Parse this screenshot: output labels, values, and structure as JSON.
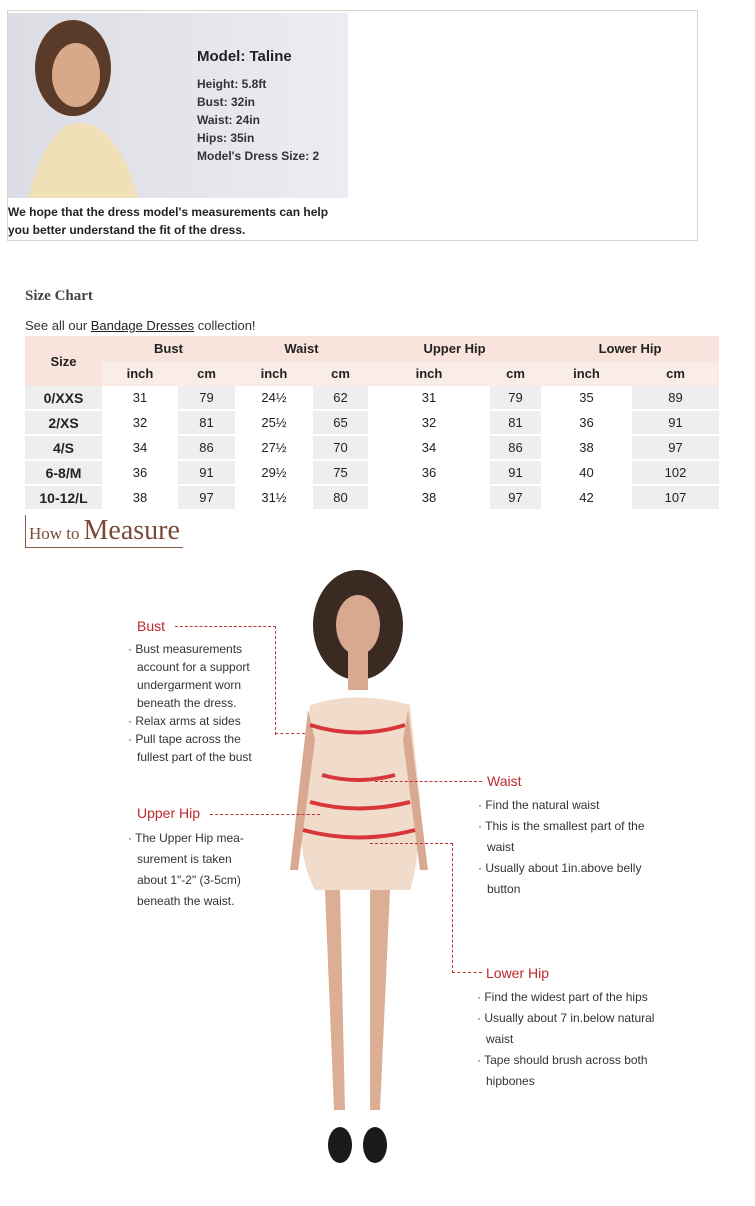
{
  "model": {
    "title": "Model: Taline",
    "lines": [
      "Height: 5.8ft",
      "Bust: 32in",
      "Waist: 24in",
      "Hips: 35in",
      "Model's Dress Size: 2"
    ],
    "note": "We hope that the dress model's measurements can help you better understand the fit of the dress."
  },
  "size_chart": {
    "title": "Size Chart",
    "see_all_prefix": "See all our ",
    "link": "Bandage Dresses",
    "see_all_suffix": " collection!",
    "size_header": "Size",
    "groups": [
      "Bust",
      "Waist",
      "Upper Hip",
      "Lower Hip"
    ],
    "units": [
      "inch",
      "cm"
    ],
    "rows": [
      [
        "0/XXS",
        "31",
        "79",
        "24½",
        "62",
        "31",
        "79",
        "35",
        "89"
      ],
      [
        "2/XS",
        "32",
        "81",
        "25½",
        "65",
        "32",
        "81",
        "36",
        "91"
      ],
      [
        "4/S",
        "34",
        "86",
        "27½",
        "70",
        "34",
        "86",
        "38",
        "97"
      ],
      [
        "6-8/M",
        "36",
        "91",
        "29½",
        "75",
        "36",
        "91",
        "40",
        "102"
      ],
      [
        "10-12/L",
        "38",
        "97",
        "31½",
        "80",
        "38",
        "97",
        "42",
        "107"
      ]
    ]
  },
  "how_to": {
    "small": "How to",
    "big": "Measure"
  },
  "measure": {
    "bust": {
      "label": "Bust",
      "items": [
        "Bust measurements account for a support undergarment worn beneath the dress.",
        "Relax arms at sides",
        "Pull tape across the fullest part of the bust"
      ]
    },
    "upper_hip": {
      "label": "Upper Hip",
      "items": [
        "The Upper Hip mea-surement is taken about 1\"-2\" (3-5cm) beneath the waist."
      ]
    },
    "waist": {
      "label": "Waist",
      "items": [
        "Find the natural waist",
        "This is the smallest part of the waist",
        "Usually about 1in.above belly button"
      ]
    },
    "lower_hip": {
      "label": "Lower Hip",
      "items": [
        "Find the widest part of the hips",
        "Usually about 7 in.below natural waist",
        "Tape should brush across both hipbones"
      ]
    }
  }
}
